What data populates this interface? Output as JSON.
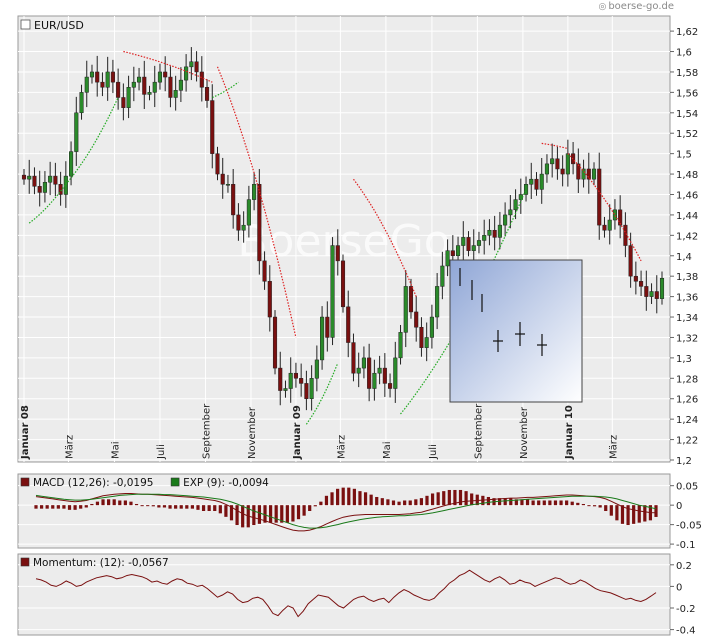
{
  "brand": {
    "text": "boerse-go.de",
    "icon": "circle-logo-icon"
  },
  "watermark": "BoerseGo",
  "colors": {
    "panel_bg": "#ececec",
    "grid": "#ffffff",
    "candle_up": "#2a8a2a",
    "candle_down": "#7a1010",
    "sar_up": "#22aa22",
    "sar_down": "#dd2222",
    "macd_line": "#7a1010",
    "signal_line": "#1a7a1a",
    "hist": "#7a1010",
    "momentum": "#7a1010"
  },
  "chart_data": [
    {
      "type": "candlestick",
      "title": "EUR/USD",
      "ylim": [
        1.2,
        1.625
      ],
      "y_ticks": [
        "1,62",
        "1,6",
        "1,58",
        "1,56",
        "1,54",
        "1,52",
        "1,5",
        "1,48",
        "1,46",
        "1,44",
        "1,42",
        "1,4",
        "1,38",
        "1,36",
        "1,34",
        "1,32",
        "1,3",
        "1,28",
        "1,26",
        "1,24",
        "1,22",
        "1,2"
      ],
      "x_labels": [
        {
          "label": "Januar 08",
          "bold": true,
          "pos": 0
        },
        {
          "label": "März",
          "bold": false,
          "pos": 8.5
        },
        {
          "label": "Mai",
          "bold": false,
          "pos": 17.3
        },
        {
          "label": "Juli",
          "bold": false,
          "pos": 26
        },
        {
          "label": "September",
          "bold": false,
          "pos": 34.7
        },
        {
          "label": "November",
          "bold": false,
          "pos": 43.4
        },
        {
          "label": "Januar 09",
          "bold": true,
          "pos": 52
        },
        {
          "label": "März",
          "bold": false,
          "pos": 60.5
        },
        {
          "label": "Mai",
          "bold": false,
          "pos": 69.2
        },
        {
          "label": "Juli",
          "bold": false,
          "pos": 78
        },
        {
          "label": "September",
          "bold": false,
          "pos": 86.7
        },
        {
          "label": "November",
          "bold": false,
          "pos": 95.4
        },
        {
          "label": "Januar 10",
          "bold": true,
          "pos": 104
        },
        {
          "label": "März",
          "bold": false,
          "pos": 112.5
        }
      ],
      "weekly_close": [
        1.475,
        1.478,
        1.468,
        1.462,
        1.472,
        1.478,
        1.47,
        1.46,
        1.478,
        1.502,
        1.54,
        1.56,
        1.575,
        1.58,
        1.57,
        1.565,
        1.58,
        1.57,
        1.555,
        1.545,
        1.565,
        1.57,
        1.575,
        1.558,
        1.56,
        1.57,
        1.58,
        1.575,
        1.555,
        1.562,
        1.572,
        1.585,
        1.59,
        1.58,
        1.565,
        1.552,
        1.5,
        1.48,
        1.47,
        1.47,
        1.44,
        1.425,
        1.43,
        1.455,
        1.47,
        1.395,
        1.375,
        1.34,
        1.29,
        1.268,
        1.27,
        1.285,
        1.28,
        1.275,
        1.26,
        1.28,
        1.298,
        1.34,
        1.32,
        1.41,
        1.395,
        1.35,
        1.315,
        1.285,
        1.29,
        1.3,
        1.27,
        1.285,
        1.29,
        1.275,
        1.27,
        1.3,
        1.325,
        1.37,
        1.345,
        1.33,
        1.31,
        1.32,
        1.34,
        1.37,
        1.39,
        1.405,
        1.4,
        1.41,
        1.418,
        1.405,
        1.41,
        1.415,
        1.42,
        1.425,
        1.418,
        1.43,
        1.44,
        1.445,
        1.455,
        1.46,
        1.47,
        1.475,
        1.465,
        1.48,
        1.49,
        1.495,
        1.485,
        1.48,
        1.5,
        1.49,
        1.475,
        1.485,
        1.475,
        1.485,
        1.43,
        1.425,
        1.435,
        1.445,
        1.43,
        1.41,
        1.38,
        1.375,
        1.37,
        1.36,
        1.365,
        1.358,
        1.378
      ],
      "sar_up": [
        {
          "from": 1,
          "to": 8,
          "start": 1.432,
          "end": 1.47
        },
        {
          "from": 8,
          "to": 18,
          "start": 1.47,
          "end": 1.555
        },
        {
          "from": 36,
          "to": 41,
          "start": 1.555,
          "end": 1.57
        },
        {
          "from": 54,
          "to": 60,
          "start": 1.235,
          "end": 1.295
        },
        {
          "from": 72,
          "to": 96,
          "start": 1.245,
          "end": 1.465
        }
      ],
      "sar_down": [
        {
          "from": 19,
          "to": 36,
          "start": 1.6,
          "end": 1.57
        },
        {
          "from": 37,
          "to": 52,
          "start": 1.585,
          "end": 1.32
        },
        {
          "from": 63,
          "to": 75,
          "start": 1.475,
          "end": 1.36
        },
        {
          "from": 99,
          "to": 104,
          "start": 1.51,
          "end": 1.505
        },
        {
          "from": 104,
          "to": 118,
          "start": 1.5,
          "end": 1.395
        }
      ]
    },
    {
      "type": "line",
      "title": "MACD (12,26): -0,0195",
      "legend": [
        {
          "label": "MACD (12,26): -0,0195",
          "color": "#7a1010"
        },
        {
          "label": "EXP (9): -0,0094",
          "color": "#1a7a1a"
        }
      ],
      "ylim": [
        -0.11,
        0.08
      ],
      "y_ticks": [
        "0.05",
        "0",
        "-0.05",
        "-0.1"
      ],
      "y_tick_values": [
        0.05,
        0,
        -0.05,
        -0.1
      ],
      "macd": [
        0.022,
        0.02,
        0.018,
        0.016,
        0.014,
        0.012,
        0.01,
        0.009,
        0.01,
        0.012,
        0.016,
        0.02,
        0.024,
        0.026,
        0.028,
        0.029,
        0.03,
        0.03,
        0.029,
        0.028,
        0.028,
        0.027,
        0.026,
        0.025,
        0.024,
        0.023,
        0.022,
        0.021,
        0.02,
        0.018,
        0.016,
        0.014,
        0.012,
        0.008,
        0.002,
        -0.005,
        -0.014,
        -0.022,
        -0.028,
        -0.032,
        -0.036,
        -0.04,
        -0.045,
        -0.05,
        -0.055,
        -0.06,
        -0.064,
        -0.066,
        -0.066,
        -0.064,
        -0.06,
        -0.055,
        -0.048,
        -0.042,
        -0.036,
        -0.031,
        -0.028,
        -0.026,
        -0.025,
        -0.024,
        -0.024,
        -0.024,
        -0.024,
        -0.024,
        -0.024,
        -0.024,
        -0.023,
        -0.022,
        -0.02,
        -0.018,
        -0.014,
        -0.01,
        -0.006,
        -0.002,
        0.002,
        0.005,
        0.008,
        0.01,
        0.011,
        0.012,
        0.013,
        0.014,
        0.015,
        0.016,
        0.017,
        0.018,
        0.018,
        0.019,
        0.02,
        0.02,
        0.021,
        0.022,
        0.023,
        0.024,
        0.025,
        0.026,
        0.026,
        0.025,
        0.024,
        0.023,
        0.022,
        0.02,
        0.016,
        0.01,
        0.003,
        -0.004,
        -0.009,
        -0.012,
        -0.015,
        -0.017,
        -0.019,
        -0.0195
      ],
      "signal": [
        0.025,
        0.023,
        0.021,
        0.019,
        0.017,
        0.015,
        0.014,
        0.013,
        0.013,
        0.014,
        0.015,
        0.017,
        0.019,
        0.021,
        0.023,
        0.025,
        0.026,
        0.027,
        0.028,
        0.028,
        0.028,
        0.028,
        0.028,
        0.027,
        0.027,
        0.026,
        0.025,
        0.024,
        0.023,
        0.022,
        0.021,
        0.019,
        0.017,
        0.015,
        0.012,
        0.008,
        0.003,
        -0.003,
        -0.009,
        -0.015,
        -0.02,
        -0.025,
        -0.03,
        -0.035,
        -0.04,
        -0.045,
        -0.05,
        -0.054,
        -0.057,
        -0.059,
        -0.059,
        -0.058,
        -0.056,
        -0.053,
        -0.05,
        -0.046,
        -0.043,
        -0.04,
        -0.037,
        -0.035,
        -0.033,
        -0.031,
        -0.03,
        -0.029,
        -0.028,
        -0.027,
        -0.027,
        -0.026,
        -0.025,
        -0.024,
        -0.022,
        -0.02,
        -0.017,
        -0.014,
        -0.011,
        -0.008,
        -0.005,
        -0.002,
        0.001,
        0.003,
        0.005,
        0.007,
        0.009,
        0.01,
        0.011,
        0.012,
        0.013,
        0.014,
        0.015,
        0.016,
        0.017,
        0.018,
        0.019,
        0.02,
        0.021,
        0.022,
        0.023,
        0.023,
        0.023,
        0.023,
        0.023,
        0.022,
        0.021,
        0.019,
        0.016,
        0.012,
        0.008,
        0.004,
        0.0,
        -0.003,
        -0.006,
        -0.0094
      ]
    },
    {
      "type": "line",
      "title": "Momentum: (12): -0,0567",
      "legend": [
        {
          "label": "Momentum: (12): -0,0567",
          "color": "#7a1010"
        }
      ],
      "ylim": [
        -0.45,
        0.3
      ],
      "y_ticks": [
        "0.2",
        "0",
        "-0.2",
        "-0.4"
      ],
      "y_tick_values": [
        0.2,
        0,
        -0.2,
        -0.4
      ],
      "values": [
        0.07,
        0.06,
        0.04,
        0.01,
        0.0,
        0.02,
        0.05,
        0.03,
        0.0,
        0.01,
        0.04,
        0.06,
        0.08,
        0.09,
        0.1,
        0.09,
        0.07,
        0.08,
        0.1,
        0.11,
        0.1,
        0.09,
        0.07,
        0.04,
        0.05,
        0.03,
        0.02,
        0.05,
        0.07,
        0.06,
        0.03,
        0.02,
        0.0,
        0.01,
        -0.02,
        -0.06,
        -0.1,
        -0.08,
        -0.05,
        -0.07,
        -0.12,
        -0.15,
        -0.14,
        -0.11,
        -0.1,
        -0.12,
        -0.18,
        -0.25,
        -0.27,
        -0.22,
        -0.18,
        -0.2,
        -0.28,
        -0.23,
        -0.16,
        -0.12,
        -0.08,
        -0.09,
        -0.1,
        -0.14,
        -0.18,
        -0.2,
        -0.16,
        -0.12,
        -0.1,
        -0.09,
        -0.12,
        -0.14,
        -0.12,
        -0.11,
        -0.15,
        -0.1,
        -0.06,
        -0.03,
        -0.05,
        -0.08,
        -0.1,
        -0.12,
        -0.13,
        -0.11,
        -0.06,
        -0.02,
        0.03,
        0.06,
        0.1,
        0.12,
        0.15,
        0.12,
        0.09,
        0.06,
        0.04,
        0.07,
        0.09,
        0.06,
        0.02,
        0.03,
        0.06,
        0.04,
        0.03,
        0.0,
        0.02,
        0.04,
        0.06,
        0.08,
        0.07,
        0.04,
        0.02,
        0.03,
        0.06,
        0.04,
        0.01,
        -0.02,
        -0.04,
        -0.05,
        -0.06,
        -0.08,
        -0.1,
        -0.12,
        -0.11,
        -0.13,
        -0.14,
        -0.12,
        -0.09,
        -0.057
      ]
    }
  ],
  "inset": {
    "description_icon": "candlestick-legend-icon"
  }
}
